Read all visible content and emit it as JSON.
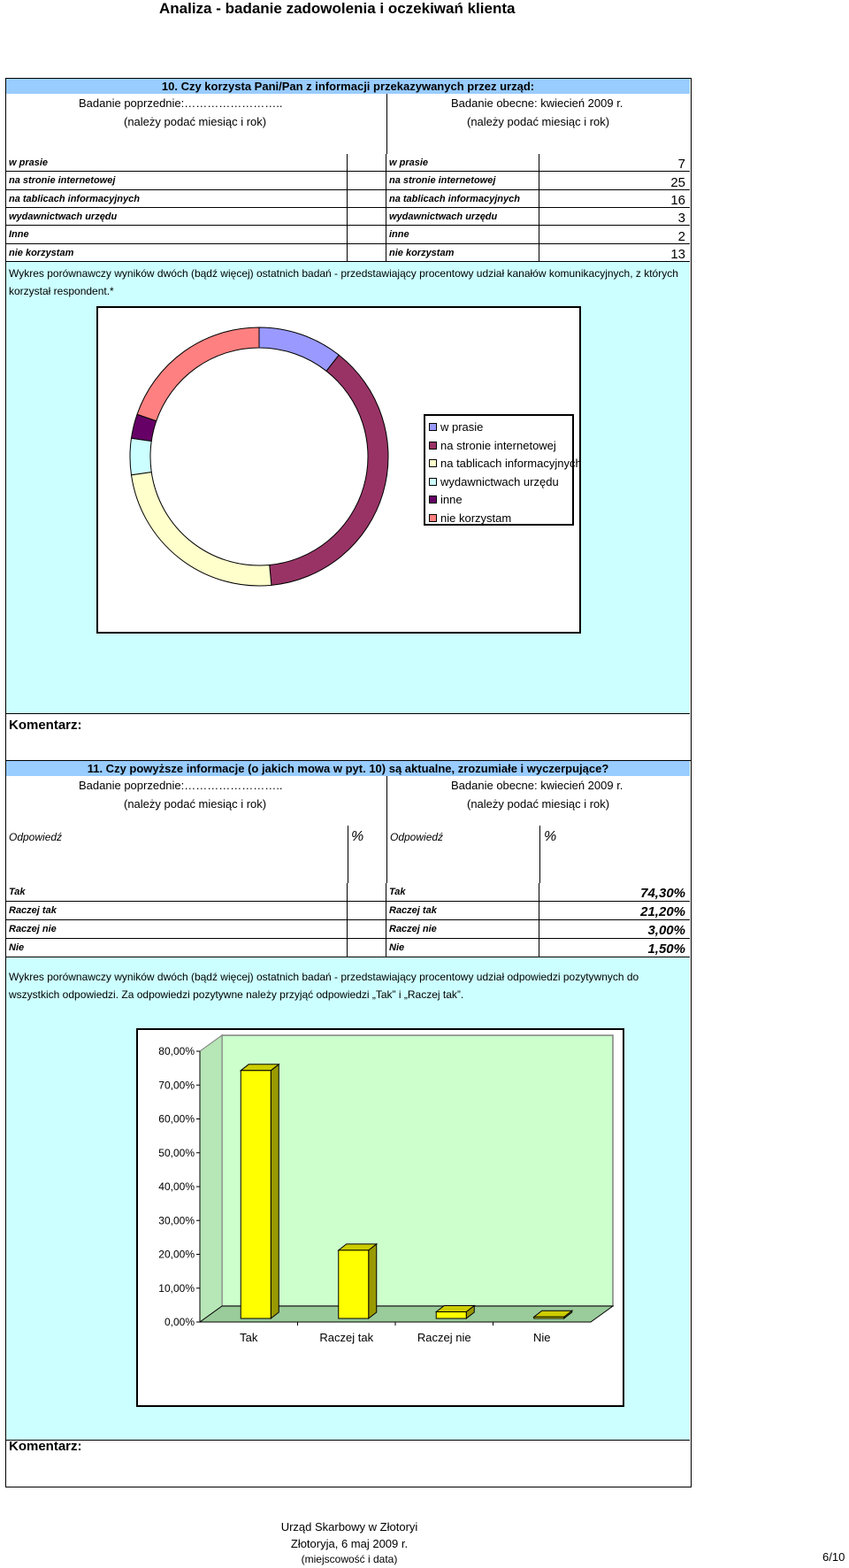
{
  "header": {
    "title": "Analiza - badanie zadowolenia i oczekiwań klienta"
  },
  "q10": {
    "question": "10. Czy korzysta Pani/Pan z informacji przekazywanych przez urząd:",
    "prev_label": "Badanie poprzednie:……………………..",
    "prev_hint": "(należy podać miesiąc i rok)",
    "curr_label": "Badanie obecne:   kwiecień 2009 r.",
    "curr_hint": "(należy podać miesiąc i rok)",
    "rows": [
      {
        "left": "w prasie",
        "right": "w prasie",
        "value": "7"
      },
      {
        "left": "na stronie internetowej",
        "right": "na stronie internetowej",
        "value": "25"
      },
      {
        "left": "na tablicach informacyjnych",
        "right": "na tablicach informacyjnych",
        "value": "16"
      },
      {
        "left": "wydawnictwach urzędu",
        "right": "wydawnictwach urzędu",
        "value": "3"
      },
      {
        "left": "Inne",
        "right": "inne",
        "value": "2"
      },
      {
        "left": "nie korzystam",
        "right": "nie korzystam",
        "value": "13"
      }
    ],
    "note": "Wykres porównawczy wyników dwóch (bądź więcej) ostatnich badań - przedstawiający procentowy udział kanałów komunikacyjnych, z których korzystał respondent.*",
    "comment_label": "Komentarz:"
  },
  "q11": {
    "question": "11. Czy powyższe informacje (o jakich mowa w pyt. 10) są aktualne, zrozumiałe i wyczerpujące?",
    "prev_label": "Badanie poprzednie:……………………..",
    "prev_hint": "(należy podać miesiąc i rok)",
    "curr_label": "Badanie obecne:   kwiecień 2009 r.",
    "curr_hint": "(należy podać miesiąc i rok)",
    "col_answer": "Odpowiedź",
    "col_percent": "%",
    "rows": [
      {
        "left": "Tak",
        "right": "Tak",
        "value": "74,30%"
      },
      {
        "left": "Raczej tak",
        "right": "Raczej tak",
        "value": "21,20%"
      },
      {
        "left": "Raczej nie",
        "right": "Raczej nie",
        "value": "3,00%"
      },
      {
        "left": "Nie",
        "right": "Nie",
        "value": "1,50%"
      }
    ],
    "note": "Wykres porównawczy wyników dwóch (bądź więcej) ostatnich badań - przedstawiający procentowy udział odpowiedzi pozytywnych do wszystkich odpowiedzi. Za odpowiedzi pozytywne należy przyjąć odpowiedzi „Tak” i „Raczej tak”.",
    "comment_label": "Komentarz:"
  },
  "footer": {
    "office": "Urząd Skarbowy w Złotoryi",
    "date": "Złotoryja, 6 maj 2009 r.",
    "hint": "(miejscowość i data)",
    "page": "6/10"
  },
  "chart_data": [
    {
      "type": "pie",
      "variant": "doughnut",
      "legend_position": "right",
      "categories": [
        "w prasie",
        "na stronie internetowej",
        "na tablicach informacyjnych",
        "wydawnictwach urzędu",
        "inne",
        "nie korzystam"
      ],
      "values": [
        7,
        25,
        16,
        3,
        2,
        13
      ],
      "colors": [
        "#9999ff",
        "#993366",
        "#ffffcc",
        "#ccffff",
        "#660066",
        "#ff8080"
      ]
    },
    {
      "type": "bar",
      "style": "3d",
      "categories": [
        "Tak",
        "Raczej tak",
        "Raczej nie",
        "Nie"
      ],
      "values": [
        74.3,
        21.2,
        3.0,
        1.5
      ],
      "ylim": [
        0,
        80
      ],
      "yticks": [
        "0,00%",
        "10,00%",
        "20,00%",
        "30,00%",
        "40,00%",
        "50,00%",
        "60,00%",
        "70,00%",
        "80,00%"
      ],
      "bar_color": "#ffff00",
      "plot_background": "#ccffcc",
      "grid": false
    }
  ]
}
